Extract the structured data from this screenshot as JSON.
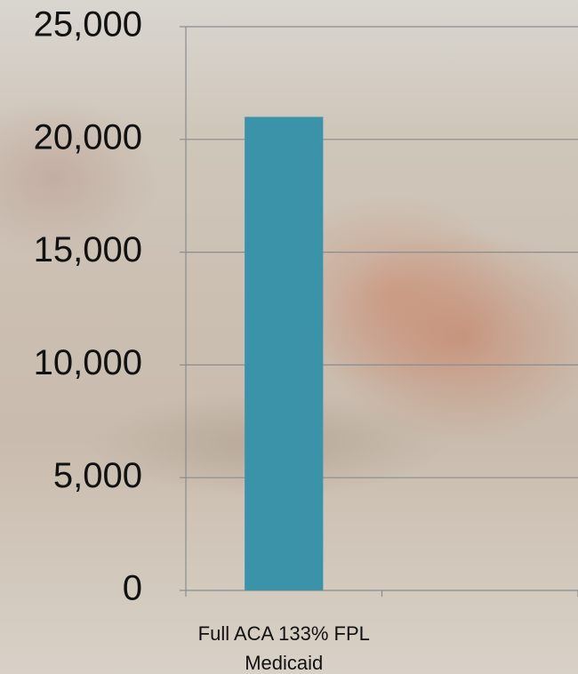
{
  "chart_data": {
    "type": "bar",
    "categories": [
      "Full ACA 133% FPL Medicaid",
      null
    ],
    "values": [
      21000,
      null
    ],
    "color": "#3a93a8",
    "ylim": [
      0,
      25000
    ],
    "yticks": [
      0,
      {
        "value": 5000,
        "label": "5,000"
      },
      {
        "value": 10000,
        "label": "10,000"
      },
      {
        "value": 15000,
        "label": "15,000"
      },
      {
        "value": 20000,
        "label": "20,000"
      },
      {
        "value": 25000,
        "label": "25,000"
      }
    ],
    "grid": true
  }
}
